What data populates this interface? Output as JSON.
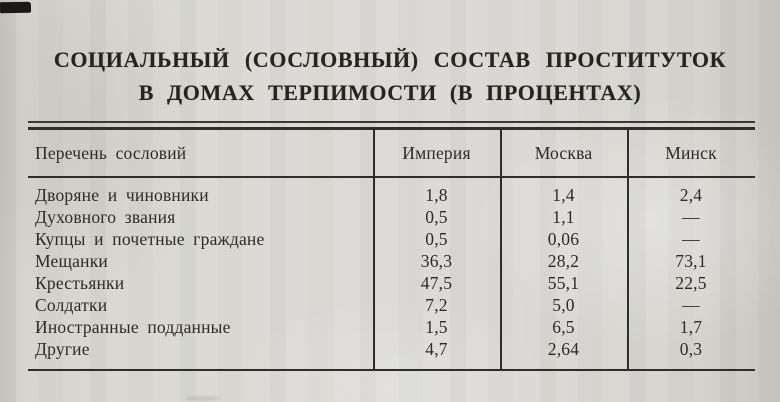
{
  "header": {
    "title_line1": "СОЦИАЛЬНЫЙ (СОСЛОВНЫЙ) СОСТАВ ПРОСТИТУТОК",
    "title_line2": "В ДОМАХ ТЕРПИМОСТИ (В ПРОЦЕНТАХ)"
  },
  "chart_data": {
    "type": "table",
    "title": "СОЦИАЛЬНЫЙ (СОСЛОВНЫЙ) СОСТАВ ПРОСТИТУТОК В ДОМАХ ТЕРПИМОСТИ (В ПРОЦЕНТАХ)",
    "columns": [
      "Перечень сословий",
      "Империя",
      "Москва",
      "Минск"
    ],
    "rows": [
      [
        "Дворяне и чиновники",
        "1,8",
        "1,4",
        "2,4"
      ],
      [
        "Духовного звания",
        "0,5",
        "1,1",
        "—"
      ],
      [
        "Купцы и почетные граждане",
        "0,5",
        "0,06",
        "—"
      ],
      [
        "Мещанки",
        "36,3",
        "28,2",
        "73,1"
      ],
      [
        "Крестьянки",
        "47,5",
        "55,1",
        "22,5"
      ],
      [
        "Солдатки",
        "7,2",
        "5,0",
        "—"
      ],
      [
        "Иностранные подданные",
        "1,5",
        "6,5",
        "1,7"
      ],
      [
        "Другие",
        "4,7",
        "2,64",
        "0,3"
      ]
    ],
    "units": "percent",
    "missing_value_glyph": "—"
  },
  "colors": {
    "paper": "#d8d7d2",
    "ink": "#2d2b27",
    "rule": "#2f2d28"
  }
}
